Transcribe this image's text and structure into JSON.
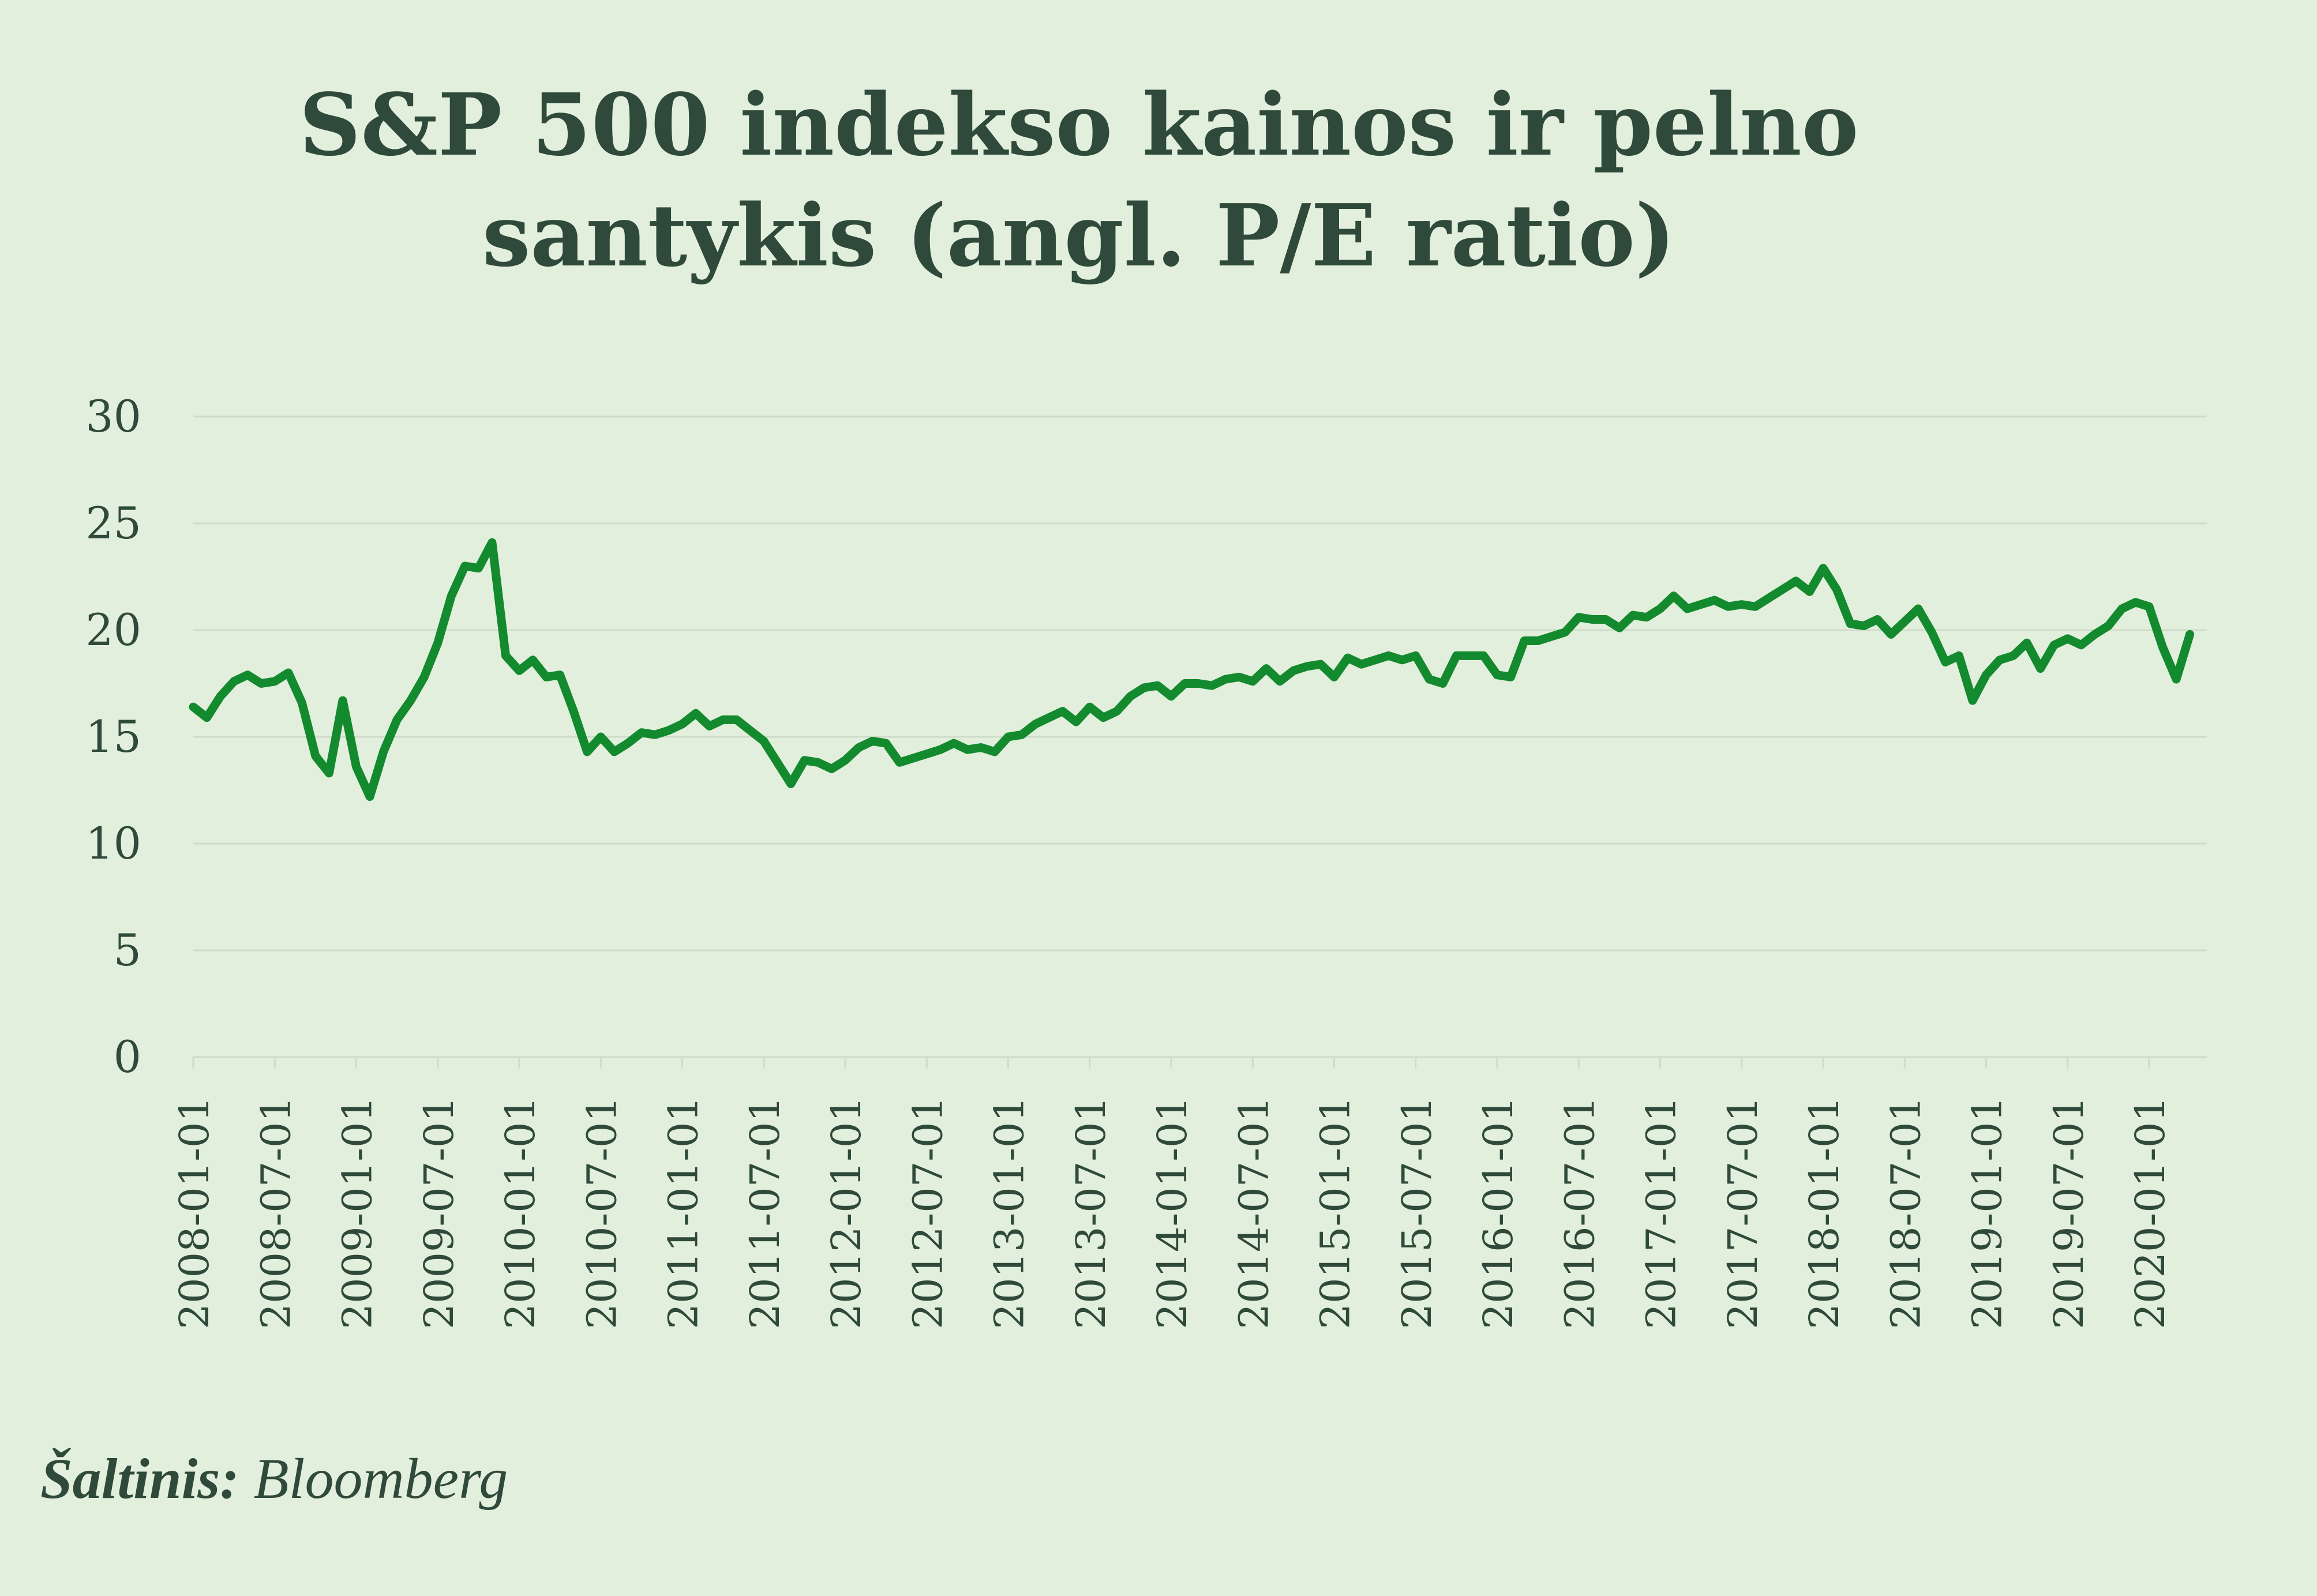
{
  "title_lines": [
    "S&P 500 indekso kainos ir pelno",
    "santykis (angl. P/E ratio)"
  ],
  "source": {
    "label": "Šaltinis:",
    "value": "Bloomberg"
  },
  "colors": {
    "background": "#e3efdd",
    "line": "#138a2e",
    "text": "#2f4a3a",
    "grid": "#cfdcc9"
  },
  "chart_data": {
    "type": "line",
    "title": "S&P 500 indekso kainos ir pelno santykis (angl. P/E ratio)",
    "xlabel": "",
    "ylabel": "",
    "ylim": [
      0,
      30
    ],
    "yticks": [
      0,
      5,
      10,
      15,
      20,
      25,
      30
    ],
    "grid": "horizontal",
    "x_tick_labels": [
      "2008-01-01",
      "2008-07-01",
      "2009-01-01",
      "2009-07-01",
      "2010-01-01",
      "2010-07-01",
      "2011-01-01",
      "2011-07-01",
      "2012-01-01",
      "2012-07-01",
      "2013-01-01",
      "2013-07-01",
      "2014-01-01",
      "2014-07-01",
      "2015-01-01",
      "2015-07-01",
      "2016-01-01",
      "2016-07-01",
      "2017-01-01",
      "2017-07-01",
      "2018-01-01",
      "2018-07-01",
      "2019-01-01",
      "2019-07-01",
      "2020-01-01"
    ],
    "x_start": "2008-01",
    "x_end": "2020-05",
    "series": [
      {
        "name": "",
        "values": [
          16.4,
          15.9,
          16.9,
          17.6,
          17.9,
          17.5,
          17.6,
          18.0,
          16.6,
          14.1,
          13.3,
          16.7,
          13.6,
          12.2,
          14.3,
          15.8,
          16.7,
          17.8,
          19.4,
          21.6,
          23.0,
          22.9,
          24.1,
          18.8,
          18.1,
          18.6,
          17.8,
          17.9,
          16.2,
          14.3,
          15.0,
          14.3,
          14.7,
          15.2,
          15.1,
          15.3,
          15.6,
          16.1,
          15.5,
          15.8,
          15.8,
          15.3,
          14.8,
          13.8,
          12.8,
          13.9,
          13.8,
          13.5,
          13.9,
          14.5,
          14.8,
          14.7,
          13.8,
          14.0,
          14.2,
          14.4,
          14.7,
          14.4,
          14.5,
          14.3,
          15.0,
          15.1,
          15.6,
          15.9,
          16.2,
          15.7,
          16.4,
          15.9,
          16.2,
          16.9,
          17.3,
          17.4,
          16.9,
          17.5,
          17.5,
          17.4,
          17.7,
          17.8,
          17.6,
          18.2,
          17.6,
          18.1,
          18.3,
          18.4,
          17.8,
          18.7,
          18.4,
          18.6,
          18.8,
          18.6,
          18.8,
          17.7,
          17.5,
          18.8,
          18.8,
          18.8,
          17.9,
          17.8,
          19.5,
          19.5,
          19.7,
          19.9,
          20.6,
          20.5,
          20.5,
          20.1,
          20.7,
          20.6,
          21.0,
          21.6,
          21.0,
          21.2,
          21.4,
          21.1,
          21.2,
          21.1,
          21.5,
          21.9,
          22.3,
          21.8,
          22.9,
          21.9,
          20.3,
          20.2,
          20.5,
          19.8,
          20.4,
          21.0,
          19.9,
          18.5,
          18.8,
          16.7,
          17.9,
          18.6,
          18.8,
          19.4,
          18.2,
          19.3,
          19.6,
          19.3,
          19.8,
          20.2,
          21.0,
          21.3,
          21.1,
          19.2,
          17.7,
          19.8
        ]
      }
    ]
  }
}
